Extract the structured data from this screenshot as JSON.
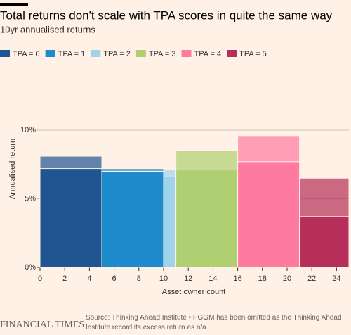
{
  "chart_data": {
    "type": "bar",
    "title": "Total returns don't scale with TPA scores in quite the same way",
    "subtitle": "10yr annualised returns",
    "y_label": "Annualised return",
    "x_label": "Asset owner count",
    "source": "Source: Thinking Ahead Institute • PGGM has been omitted as the Thinking Ahead Institute record its excess return as n/a",
    "brand": "FINANCIAL TIMES",
    "xlim": [
      0,
      25
    ],
    "xticks": [
      0,
      2,
      4,
      6,
      8,
      10,
      12,
      14,
      16,
      18,
      20,
      22,
      24
    ],
    "ylim": [
      0,
      10
    ],
    "yticks": [
      {
        "value": 0,
        "label": "0%"
      },
      {
        "value": 5,
        "label": "5%"
      },
      {
        "value": 10,
        "label": "10%"
      }
    ],
    "grid": true,
    "legend_position": "top",
    "series": [
      {
        "name": "TPA = 0",
        "color": "#1f5591",
        "x": [
          0,
          5
        ],
        "values": [
          7.2,
          8.1
        ]
      },
      {
        "name": "TPA = 1",
        "color": "#1e8bcd",
        "x": [
          5,
          10
        ],
        "values": [
          7.0,
          7.2
        ]
      },
      {
        "name": "TPA = 2",
        "color": "#9fd3ec",
        "x": [
          10,
          11
        ],
        "values": [
          6.6,
          7.1
        ]
      },
      {
        "name": "TPA = 3",
        "color": "#b0cf72",
        "x": [
          11,
          16
        ],
        "values": [
          7.1,
          8.5
        ]
      },
      {
        "name": "TPA = 4",
        "color": "#ff7aa0",
        "x": [
          16,
          21
        ],
        "values": [
          7.7,
          9.6
        ]
      },
      {
        "name": "TPA = 5",
        "color": "#b52f5a",
        "x": [
          21,
          25
        ],
        "values": [
          3.7,
          6.5
        ]
      }
    ]
  }
}
